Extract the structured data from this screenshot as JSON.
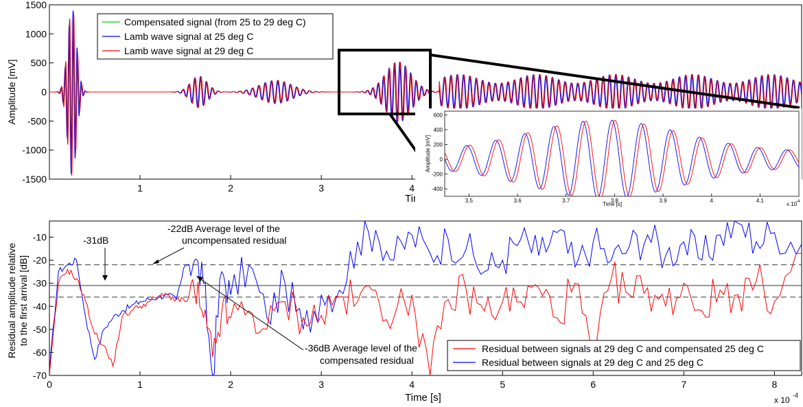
{
  "chart_data": [
    {
      "type": "line",
      "title": "",
      "xlabel": "Tim",
      "ylabel": "Amplitude [mV]",
      "xlim": [
        0,
        8.3
      ],
      "ylim": [
        -1500,
        1500
      ],
      "xticks": [
        1,
        2,
        3,
        4
      ],
      "yticks": [
        1500,
        1000,
        500,
        0,
        -500,
        -1000,
        -1500
      ],
      "x_scale_note": "",
      "legend_position": "top-left",
      "series": [
        {
          "name": "Compensated signal (from 25 to 29 deg C)",
          "color": "#00cc00",
          "bursts": [
            {
              "center": 0.25,
              "amplitude": 1450,
              "width": 0.07,
              "period": 0.045
            },
            {
              "center": 1.65,
              "amplitude": 270,
              "width": 0.13,
              "period": 0.065
            },
            {
              "center": 2.5,
              "amplitude": 200,
              "width": 0.25,
              "period": 0.07
            },
            {
              "center": 3.85,
              "amplitude": 520,
              "width": 0.2,
              "period": 0.06
            }
          ]
        },
        {
          "name": "Lamb wave signal at 25 deg C",
          "color": "#0000ff"
        },
        {
          "name": "Lamb wave signal at 29 deg C",
          "color": "#ff0000"
        }
      ],
      "tail_amplitude": 300
    },
    {
      "type": "line",
      "title": "",
      "xlabel": "Time [s]",
      "ylabel": "Amplitude [mV]",
      "xlim": [
        3.45,
        4.18
      ],
      "ylim": [
        -500,
        650
      ],
      "xticks": [
        3.5,
        3.6,
        3.7,
        3.8,
        3.9,
        4,
        4.1
      ],
      "yticks": [
        600,
        400,
        200,
        0,
        -200,
        -400
      ],
      "x_scale_note": "x 10",
      "x_scale_exp": "-4",
      "series": [
        {
          "name": "Lamb wave signal at 25 deg C",
          "color": "#0000ff"
        },
        {
          "name": "Lamb wave signal at 29 deg C",
          "color": "#ff0000"
        }
      ],
      "burst": {
        "center": 3.78,
        "amplitude": 530,
        "width": 0.2,
        "period": 0.06
      }
    },
    {
      "type": "line",
      "title": "",
      "xlabel": "Time [s]",
      "ylabel": "Residual amplitude relative to the first arrival [dB]",
      "ylabel_lines": [
        "Residual amplitude relative",
        "to the first arrival [dB]"
      ],
      "xlim": [
        0,
        8.3
      ],
      "ylim": [
        -70,
        -3
      ],
      "xticks": [
        0,
        1,
        2,
        3,
        4,
        5,
        6,
        7,
        8
      ],
      "yticks": [
        -10,
        -20,
        -30,
        -40,
        -50,
        -60,
        -70
      ],
      "x_scale_note": "x 10",
      "x_scale_exp": "-4",
      "legend_position": "bottom-right",
      "series": [
        {
          "name": "Residual between signals at 29 deg C and compensated 25 deg C",
          "color": "#ff0000",
          "x": [
            0,
            0.1,
            0.2,
            0.3,
            0.4,
            0.5,
            0.6,
            0.7,
            0.8,
            0.9,
            1.0,
            1.1,
            1.2,
            1.3,
            1.4,
            1.5,
            1.6,
            1.7,
            1.8,
            1.9,
            2.0,
            2.2,
            2.4,
            2.6,
            2.8,
            3.0,
            3.2,
            3.4,
            3.6,
            3.8,
            4.0,
            4.2,
            4.4,
            4.6,
            4.8,
            5.0,
            5.2,
            5.4,
            5.6,
            5.8,
            6.0,
            6.2,
            6.4,
            6.6,
            6.8,
            7.0,
            7.2,
            7.4,
            7.6,
            7.8,
            8.0,
            8.3
          ],
          "y": [
            -70,
            -30,
            -24,
            -28,
            -38,
            -52,
            -57,
            -66,
            -45,
            -42,
            -40,
            -38,
            -36,
            -35,
            -37,
            -38,
            -33,
            -45,
            -62,
            -43,
            -45,
            -42,
            -50,
            -38,
            -45,
            -44,
            -36,
            -38,
            -33,
            -45,
            -35,
            -70,
            -37,
            -33,
            -42,
            -38,
            -38,
            -32,
            -45,
            -30,
            -65,
            -28,
            -35,
            -32,
            -40,
            -30,
            -42,
            -33,
            -35,
            -29,
            -38,
            -17
          ]
        },
        {
          "name": "Residual between signals at 29 deg C and 25 deg C",
          "color": "#0000ff",
          "x": [
            0,
            0.1,
            0.2,
            0.3,
            0.4,
            0.5,
            0.6,
            0.7,
            0.8,
            0.9,
            1.0,
            1.1,
            1.2,
            1.3,
            1.4,
            1.5,
            1.6,
            1.7,
            1.8,
            1.9,
            2.0,
            2.2,
            2.4,
            2.6,
            2.8,
            3.0,
            3.2,
            3.4,
            3.6,
            3.8,
            4.0,
            4.2,
            4.4,
            4.6,
            4.8,
            5.0,
            5.2,
            5.4,
            5.6,
            5.8,
            6.0,
            6.2,
            6.4,
            6.6,
            6.8,
            7.0,
            7.2,
            7.4,
            7.6,
            7.8,
            8.0,
            8.3
          ],
          "y": [
            -68,
            -25,
            -22,
            -20,
            -45,
            -63,
            -50,
            -45,
            -42,
            -40,
            -38,
            -37,
            -36,
            -35,
            -37,
            -22,
            -20,
            -30,
            -70,
            -25,
            -35,
            -22,
            -45,
            -30,
            -50,
            -35,
            -33,
            -12,
            -7,
            -20,
            -9,
            -17,
            -11,
            -15,
            -25,
            -20,
            -11,
            -18,
            -8,
            -23,
            -12,
            -20,
            -14,
            -9,
            -18,
            -12,
            -20,
            -9,
            -4,
            -12,
            -8,
            -13
          ]
        }
      ],
      "reference_lines": [
        {
          "y": -22,
          "style": "dashed"
        },
        {
          "y": -31,
          "style": "solid"
        },
        {
          "y": -36,
          "style": "dashed"
        }
      ],
      "annotations": [
        {
          "label": "-22dB Average level of the",
          "label2": "uncompensated residual"
        },
        {
          "label": "-31dB"
        },
        {
          "label": "-36dB Average level of the",
          "label2": "compensated residual"
        }
      ]
    }
  ]
}
